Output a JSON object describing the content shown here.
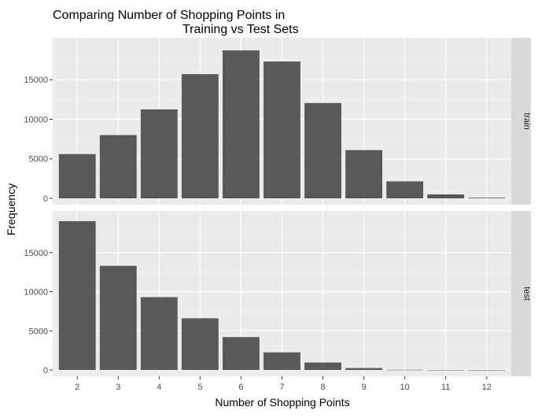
{
  "chart_data": {
    "type": "bar",
    "title_line1": "Comparing Number of Shopping Points in",
    "title_line2": "Training vs Test Sets",
    "xlabel": "Number of Shopping Points",
    "ylabel": "Frequency",
    "categories": [
      "2",
      "3",
      "4",
      "5",
      "6",
      "7",
      "8",
      "9",
      "10",
      "11",
      "12"
    ],
    "yticks": [
      0,
      5000,
      10000,
      15000
    ],
    "ylim": [
      0,
      19500
    ],
    "bar_color": "#595959",
    "panel_background": "#ebebeb",
    "strip_background": "#d9d9d9",
    "panels": [
      {
        "strip": "train",
        "values": [
          5600,
          8000,
          11250,
          15700,
          18700,
          17300,
          12050,
          6100,
          2150,
          500,
          80
        ]
      },
      {
        "strip": "test",
        "values": [
          19000,
          13300,
          9300,
          6600,
          4200,
          2250,
          950,
          250,
          20,
          5,
          0
        ]
      }
    ]
  }
}
